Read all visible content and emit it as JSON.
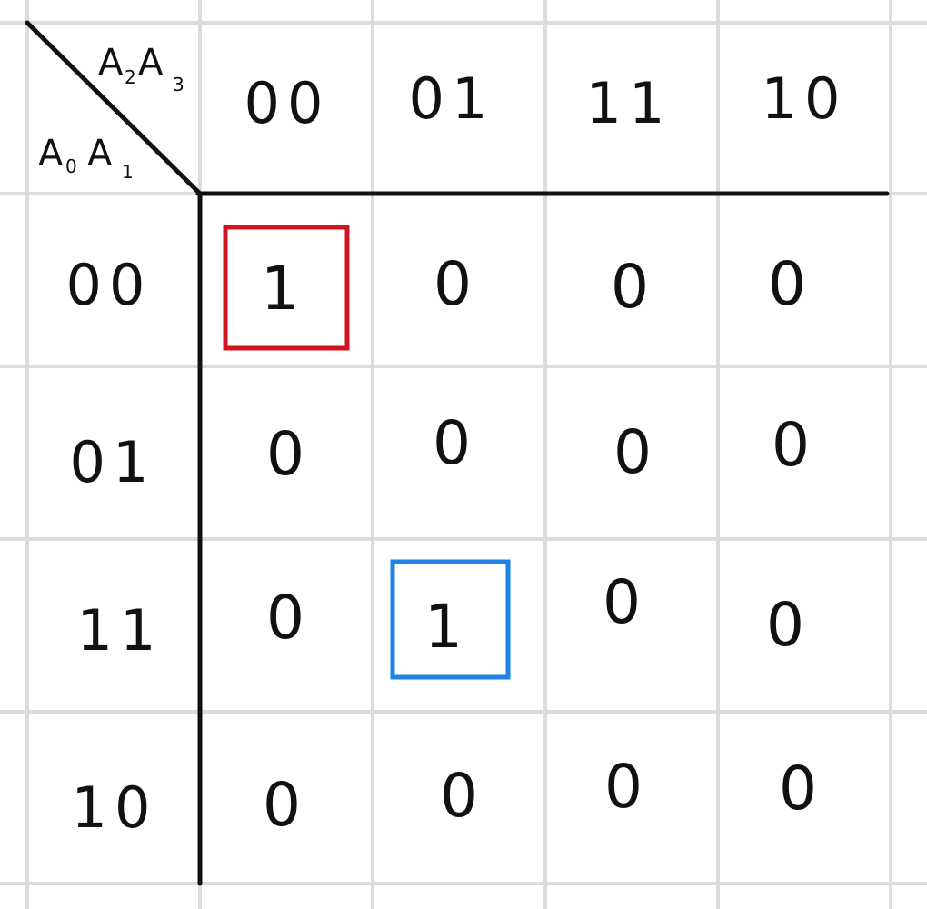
{
  "variables": {
    "row_pair": [
      "A",
      "0",
      "A",
      "1"
    ],
    "col_pair": [
      "A",
      "2",
      "A",
      "3"
    ]
  },
  "column_headers": [
    "00",
    "01",
    "11",
    "10"
  ],
  "row_headers": [
    "00",
    "01",
    "11",
    "10"
  ],
  "cells": [
    [
      "1",
      "0",
      "0",
      "0"
    ],
    [
      "0",
      "0",
      "0",
      "0"
    ],
    [
      "0",
      "1",
      "0",
      "0"
    ],
    [
      "0",
      "0",
      "0",
      "0"
    ]
  ],
  "highlights": [
    {
      "row": 0,
      "col": 0,
      "color": "#d0141e"
    },
    {
      "row": 2,
      "col": 1,
      "color": "#1e82e6"
    }
  ],
  "colors": {
    "grid": "#dcdcdc",
    "ink": "#111111",
    "paper": "#ffffff"
  }
}
